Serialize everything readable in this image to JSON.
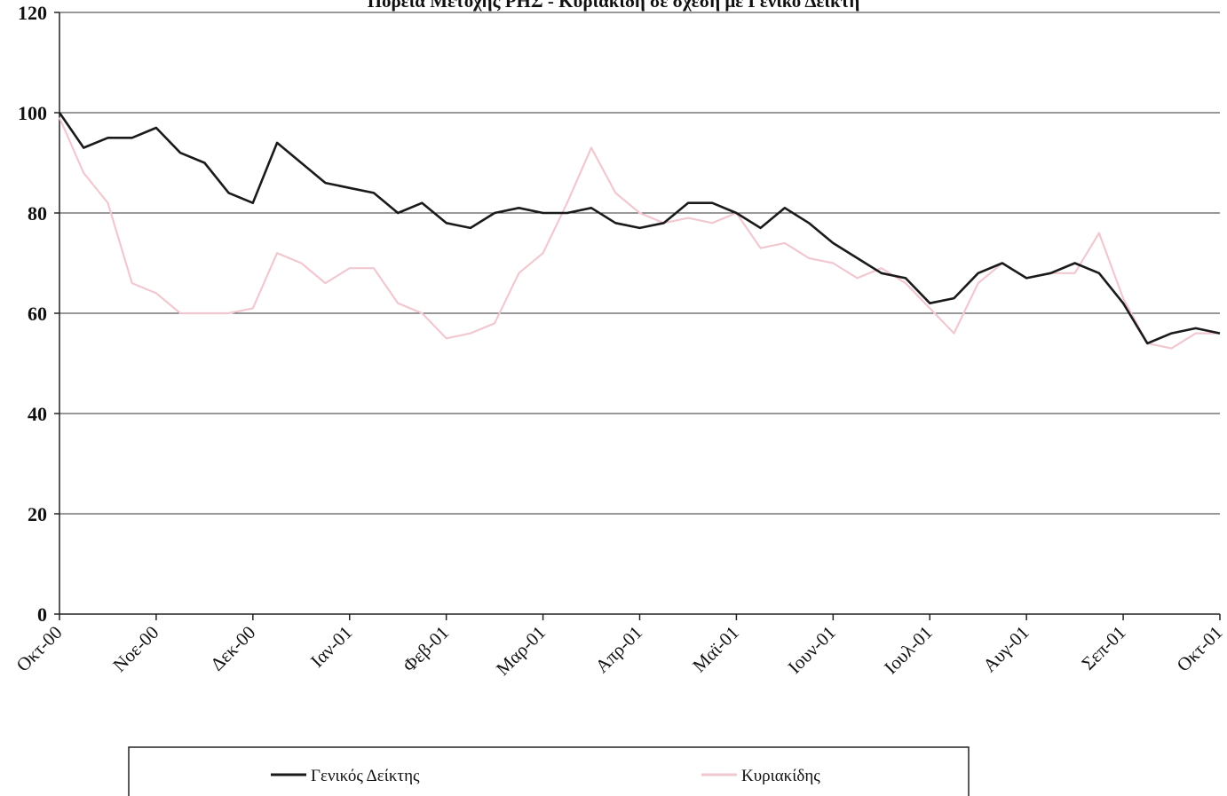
{
  "chart_data": {
    "type": "line",
    "title": "Πορεία Μετοχής ΡΗΣ - Κυριακίδη σε σχέση με Γενικό Δείκτη",
    "xlabel": "",
    "ylabel": "",
    "ylim": [
      0,
      120
    ],
    "yticks": [
      0,
      20,
      40,
      60,
      80,
      100,
      120
    ],
    "grid": true,
    "legend_position": "bottom",
    "categories": [
      "Οκτ-00",
      "Νοε-00",
      "Δεκ-00",
      "Ιαν-01",
      "Φεβ-01",
      "Μαρ-01",
      "Απρ-01",
      "Μαϊ-01",
      "Ιουν-01",
      "Ιουλ-01",
      "Αυγ-01",
      "Σεπ-01",
      "Οκτ-01"
    ],
    "x": [
      0,
      0.25,
      0.5,
      0.75,
      1,
      1.25,
      1.5,
      1.75,
      2,
      2.25,
      2.5,
      2.75,
      3,
      3.25,
      3.5,
      3.75,
      4,
      4.25,
      4.5,
      4.75,
      5,
      5.25,
      5.5,
      5.75,
      6,
      6.25,
      6.5,
      6.75,
      7,
      7.25,
      7.5,
      7.75,
      8,
      8.25,
      8.5,
      8.75,
      9,
      9.25,
      9.5,
      9.75,
      10,
      10.25,
      10.5,
      10.75,
      11,
      11.25,
      11.5,
      11.75,
      12
    ],
    "series": [
      {
        "name": "Γενικός Δείκτης",
        "color": "#1a1a1a",
        "values": [
          100,
          93,
          95,
          95,
          97,
          92,
          90,
          84,
          82,
          94,
          90,
          86,
          85,
          84,
          80,
          82,
          78,
          77,
          80,
          81,
          80,
          80,
          81,
          78,
          77,
          78,
          82,
          82,
          80,
          77,
          81,
          78,
          74,
          71,
          68,
          67,
          62,
          63,
          68,
          70,
          67,
          68,
          70,
          68,
          62,
          54,
          56,
          57,
          56
        ]
      },
      {
        "name": "Κυριακίδης",
        "color": "#f2c8d0",
        "values": [
          99,
          88,
          82,
          66,
          64,
          60,
          60,
          60,
          61,
          72,
          70,
          66,
          69,
          69,
          62,
          60,
          55,
          56,
          58,
          68,
          72,
          82,
          93,
          84,
          80,
          78,
          79,
          78,
          80,
          73,
          74,
          71,
          70,
          67,
          69,
          66,
          61,
          56,
          66,
          70,
          67,
          68,
          68,
          76,
          63,
          54,
          53,
          56,
          56
        ]
      }
    ]
  },
  "legend": {
    "items": [
      {
        "label": "Γενικός Δείκτης",
        "color": "#1a1a1a"
      },
      {
        "label": "Κυριακίδης",
        "color": "#f2c8d0"
      }
    ]
  }
}
